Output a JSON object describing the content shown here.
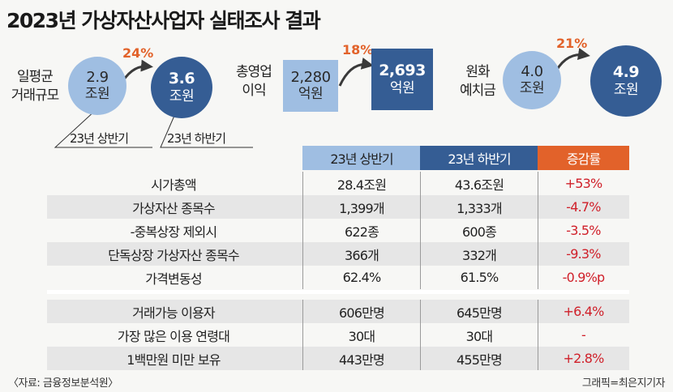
{
  "title": "2023년 가상자산사업자 실태조사 결과",
  "colors": {
    "light_blue": "#9fbee2",
    "dark_blue": "#355d94",
    "accent_orange": "#e2622a",
    "change_red": "#d0202a"
  },
  "summary": {
    "trading": {
      "label_line1": "일평균",
      "label_line2": "거래규모",
      "first_value": "2.9",
      "first_unit": "조원",
      "second_value": "3.6",
      "second_unit": "조원",
      "change": "24%",
      "period1": "23년 상반기",
      "period2": "23년 하반기"
    },
    "profit": {
      "label_line1": "총영업",
      "label_line2": "이익",
      "first_value": "2,280",
      "first_unit": "억원",
      "second_value": "2,693",
      "second_unit": "억원",
      "change": "18%"
    },
    "deposits": {
      "label_line1": "원화",
      "label_line2": "예치금",
      "first_value": "4.0",
      "first_unit": "조원",
      "second_value": "4.9",
      "second_unit": "조원",
      "change": "21%"
    }
  },
  "table": {
    "headers": [
      "23년 상반기",
      "23년 하반기",
      "증감률"
    ],
    "rows": [
      [
        "시가총액",
        "28.4조원",
        "43.6조원",
        "+53%"
      ],
      [
        "가상자산 종목수",
        "1,399개",
        "1,333개",
        "-4.7%"
      ],
      [
        "-중복상장 제외시",
        "622종",
        "600종",
        "-3.5%"
      ],
      [
        "단독상장 가상자산 종목수",
        "366개",
        "332개",
        "-9.3%"
      ],
      [
        "가격변동성",
        "62.4%",
        "61.5%",
        "-0.9%p"
      ],
      [
        "거래가능 이용자",
        "606만명",
        "645만명",
        "+6.4%"
      ],
      [
        "가장 많은 이용 연령대",
        "30대",
        "30대",
        "-"
      ],
      [
        "1백만원 미만 보유",
        "443만명",
        "455만명",
        "+2.8%"
      ]
    ]
  },
  "chart_data": {
    "type": "table",
    "title": "2023년 가상자산사업자 실태조사 결과",
    "summary_metrics": [
      {
        "metric": "일평균 거래규모",
        "unit": "조원",
        "23년 상반기": 2.9,
        "23년 하반기": 3.6,
        "change_pct": 24
      },
      {
        "metric": "총영업이익",
        "unit": "억원",
        "23년 상반기": 2280,
        "23년 하반기": 2693,
        "change_pct": 18
      },
      {
        "metric": "원화 예치금",
        "unit": "조원",
        "23년 상반기": 4.0,
        "23년 하반기": 4.9,
        "change_pct": 21
      }
    ],
    "columns": [
      "",
      "23년 상반기",
      "23년 하반기",
      "증감률"
    ]
  },
  "footer": {
    "source": "〈자료: 금융정보분석원〉",
    "credit": "그래픽=최은지기자"
  }
}
